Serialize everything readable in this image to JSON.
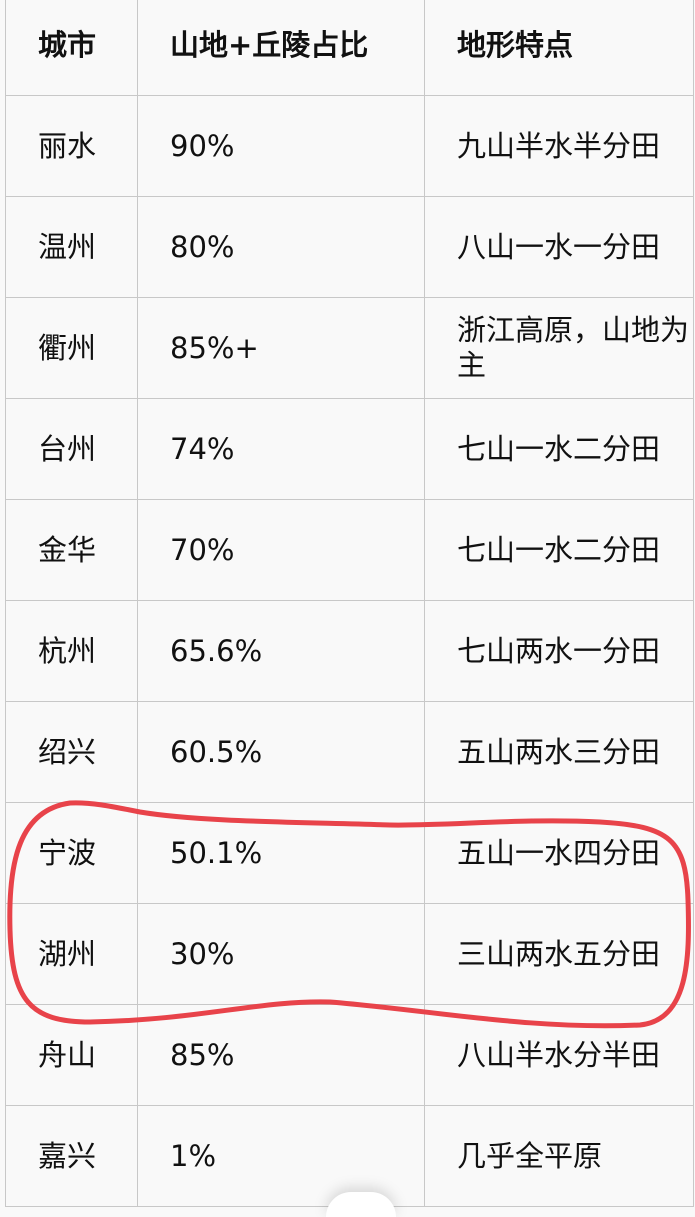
{
  "table": {
    "headers": [
      "城市",
      "山地+丘陵占比",
      "地形特点"
    ],
    "rows": [
      [
        "丽水",
        "90%",
        "九山半水半分田"
      ],
      [
        "温州",
        "80%",
        "八山一水一分田"
      ],
      [
        "衢州",
        "85%+",
        "浙江高原，山地为主"
      ],
      [
        "台州",
        "74%",
        "七山一水二分田"
      ],
      [
        "金华",
        "70%",
        "七山一水二分田"
      ],
      [
        "杭州",
        "65.6%",
        "七山两水一分田"
      ],
      [
        "绍兴",
        "60.5%",
        "五山两水三分田"
      ],
      [
        "宁波",
        "50.1%",
        "五山一水四分田"
      ],
      [
        "湖州",
        "30%",
        "三山两水五分田"
      ],
      [
        "舟山",
        "85%",
        "八山半水分半田"
      ],
      [
        "嘉兴",
        "1%",
        "几乎全平原"
      ]
    ]
  },
  "annotation": {
    "color": "#e8434a",
    "highlighted_rows": [
      "宁波",
      "湖州"
    ]
  }
}
